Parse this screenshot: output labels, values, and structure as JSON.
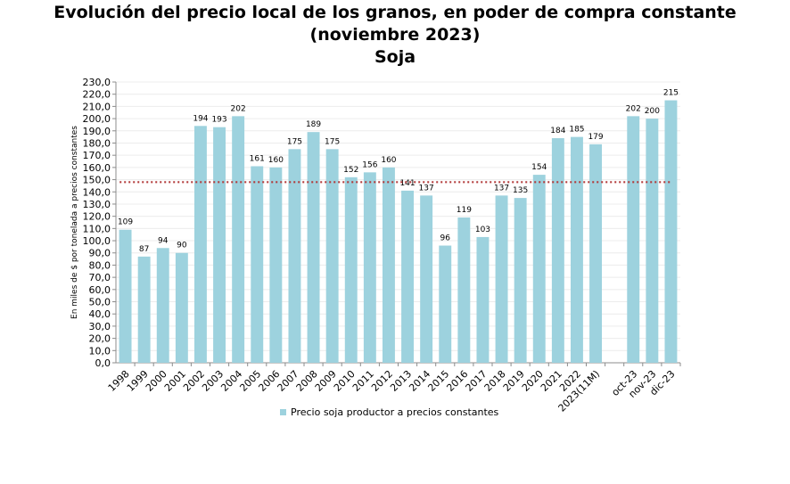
{
  "chart_data": {
    "type": "bar",
    "title": "Evolución del precio local de los granos, en poder de compra constante (noviembre 2023)",
    "subtitle": "Soja",
    "ylabel": "En miles de $ por tonelada a precios constantes",
    "xlabel": "",
    "ylim": [
      0,
      230
    ],
    "ystep": 10,
    "grid": true,
    "legend_position": "bottom",
    "categories": [
      "1998",
      "1999",
      "2000",
      "2001",
      "2002",
      "2003",
      "2004",
      "2005",
      "2006",
      "2007",
      "2008",
      "2009",
      "2010",
      "2011",
      "2012",
      "2013",
      "2014",
      "2015",
      "2016",
      "2017",
      "2018",
      "2019",
      "2020",
      "2021",
      "2022",
      "2023(11M)",
      "",
      "oct-23",
      "nov-23",
      "dic-23"
    ],
    "series": [
      {
        "name": "Precio soja productor a precios constantes",
        "values": [
          109,
          87,
          94,
          90,
          194,
          193,
          202,
          161,
          160,
          175,
          189,
          175,
          152,
          156,
          160,
          141,
          137,
          96,
          119,
          103,
          137,
          135,
          154,
          184,
          185,
          179,
          null,
          202,
          200,
          215
        ],
        "color": "#9dd2de"
      }
    ],
    "reference_line": {
      "value": 148,
      "color": "#b23a3a",
      "style": "dotted"
    }
  }
}
